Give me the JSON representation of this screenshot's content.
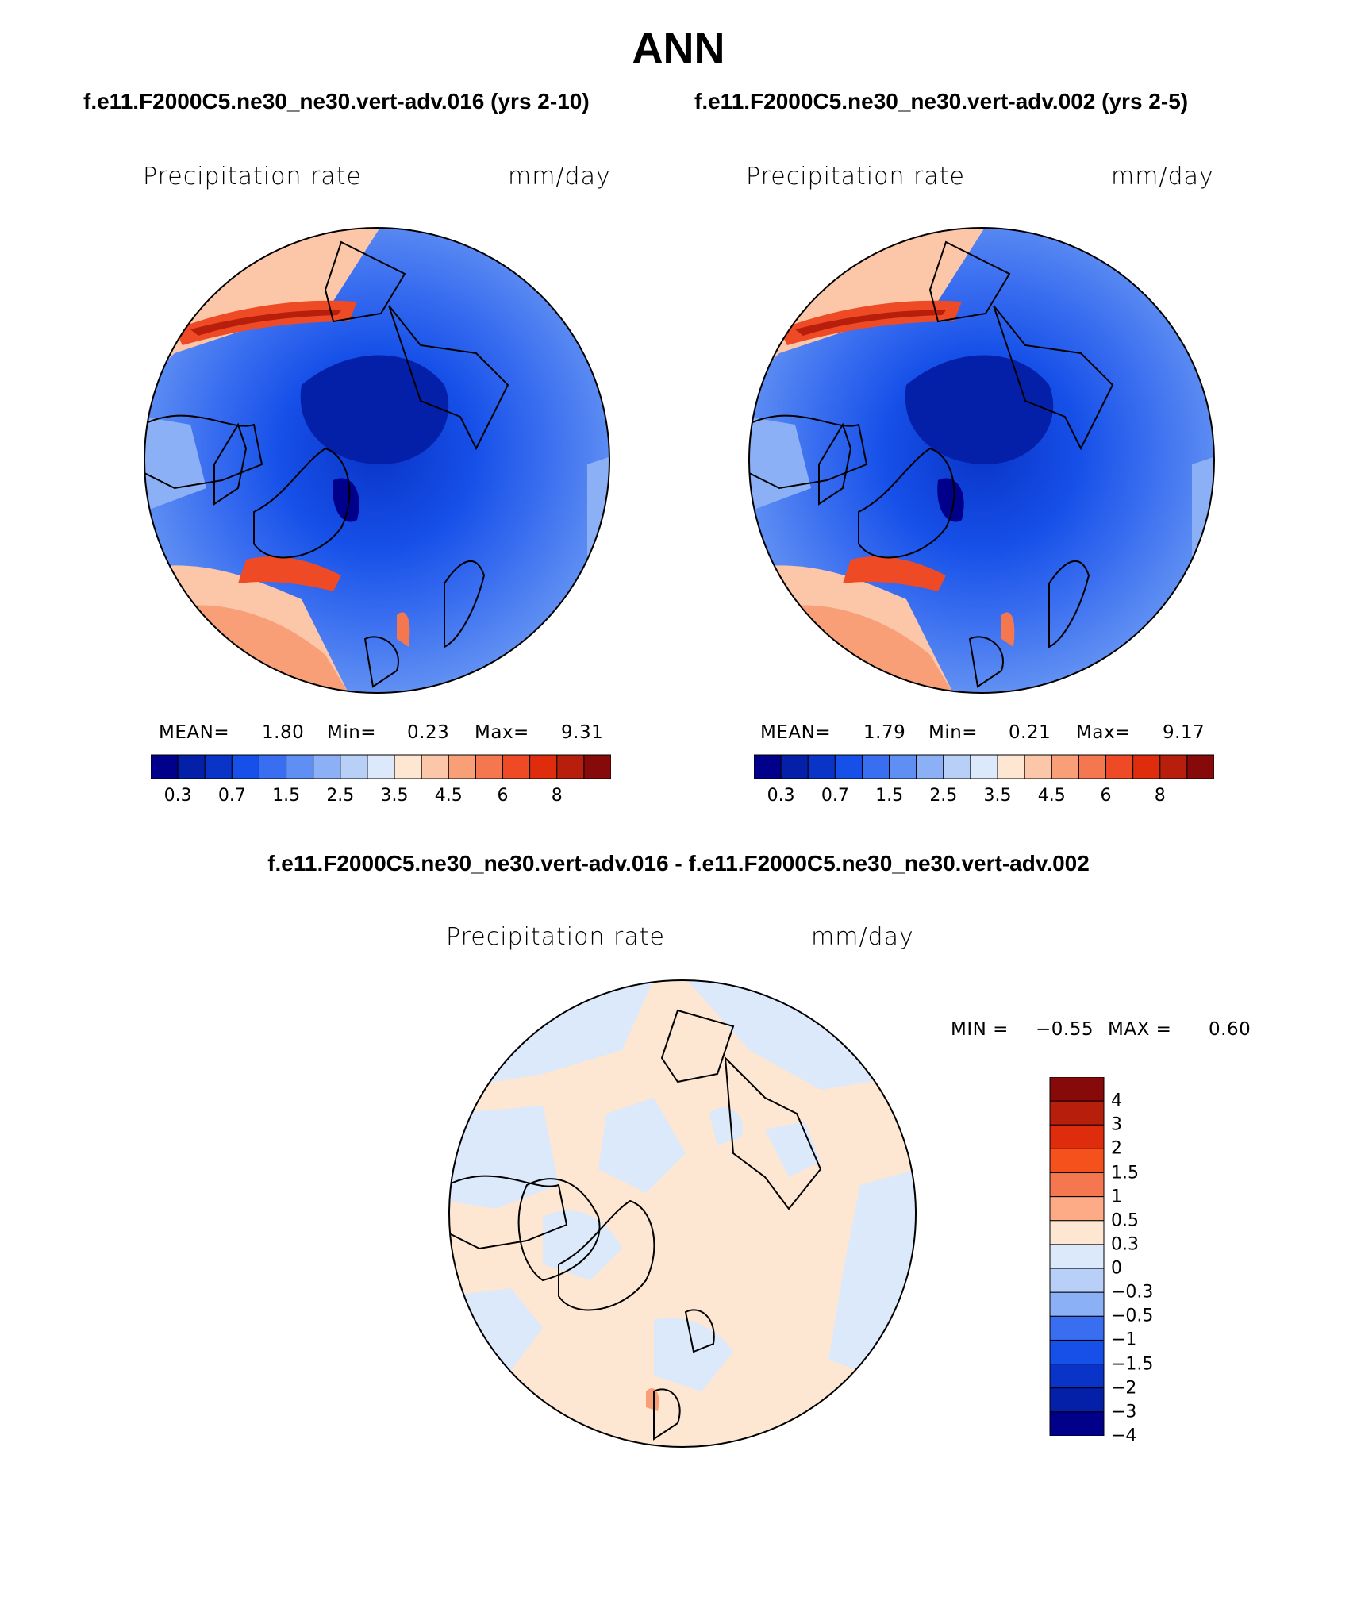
{
  "title": "ANN",
  "panels": [
    {
      "subtitle": "f.e11.F2000C5.ne30_ne30.vert-adv.016 (yrs 2-10)",
      "variable": "Precipitation rate",
      "units": "mm/day",
      "stats": {
        "mean_label": "MEAN=",
        "mean": "1.80",
        "min_label": "Min=",
        "min": "0.23",
        "max_label": "Max=",
        "max": "9.31"
      }
    },
    {
      "subtitle": "f.e11.F2000C5.ne30_ne30.vert-adv.002 (yrs 2-5)",
      "variable": "Precipitation rate",
      "units": "mm/day",
      "stats": {
        "mean_label": "MEAN=",
        "mean": "1.79",
        "min_label": "Min=",
        "min": "0.21",
        "max_label": "Max=",
        "max": "9.17"
      }
    }
  ],
  "abs_colorbar": {
    "colors": [
      "#00008b",
      "#0520a8",
      "#0a34c8",
      "#1650e8",
      "#3a6ef0",
      "#5f8ff2",
      "#8cb0f6",
      "#b8d0f8",
      "#dce9fb",
      "#fde6d2",
      "#fcc6a8",
      "#f99f78",
      "#f5774f",
      "#ee4a26",
      "#de2c0c",
      "#b71f0c",
      "#870a0a"
    ],
    "labels": [
      "0.3",
      "0.7",
      "1.5",
      "2.5",
      "3.5",
      "4.5",
      "6",
      "8"
    ]
  },
  "diff": {
    "subtitle": "f.e11.F2000C5.ne30_ne30.vert-adv.016 - f.e11.F2000C5.ne30_ne30.vert-adv.002",
    "variable": "Precipitation rate",
    "units": "mm/day",
    "minmax": {
      "min_label": "MIN =",
      "min": "−0.55",
      "max_label": "MAX =",
      "max": "0.60"
    },
    "colorbar": {
      "colors": [
        "#870a0a",
        "#b71f0c",
        "#de2c0c",
        "#f5511d",
        "#f5774f",
        "#fcab86",
        "#fde6d2",
        "#dce9fb",
        "#b8d0f8",
        "#8cb0f6",
        "#3a6ef0",
        "#1650e8",
        "#0a34c8",
        "#0520a8",
        "#00008b"
      ],
      "labels": [
        "4",
        "3",
        "2",
        "1.5",
        "1",
        "0.5",
        "0.3",
        "0",
        "−0.3",
        "−0.5",
        "−1",
        "−1.5",
        "−2",
        "−3",
        "−4"
      ]
    }
  }
}
